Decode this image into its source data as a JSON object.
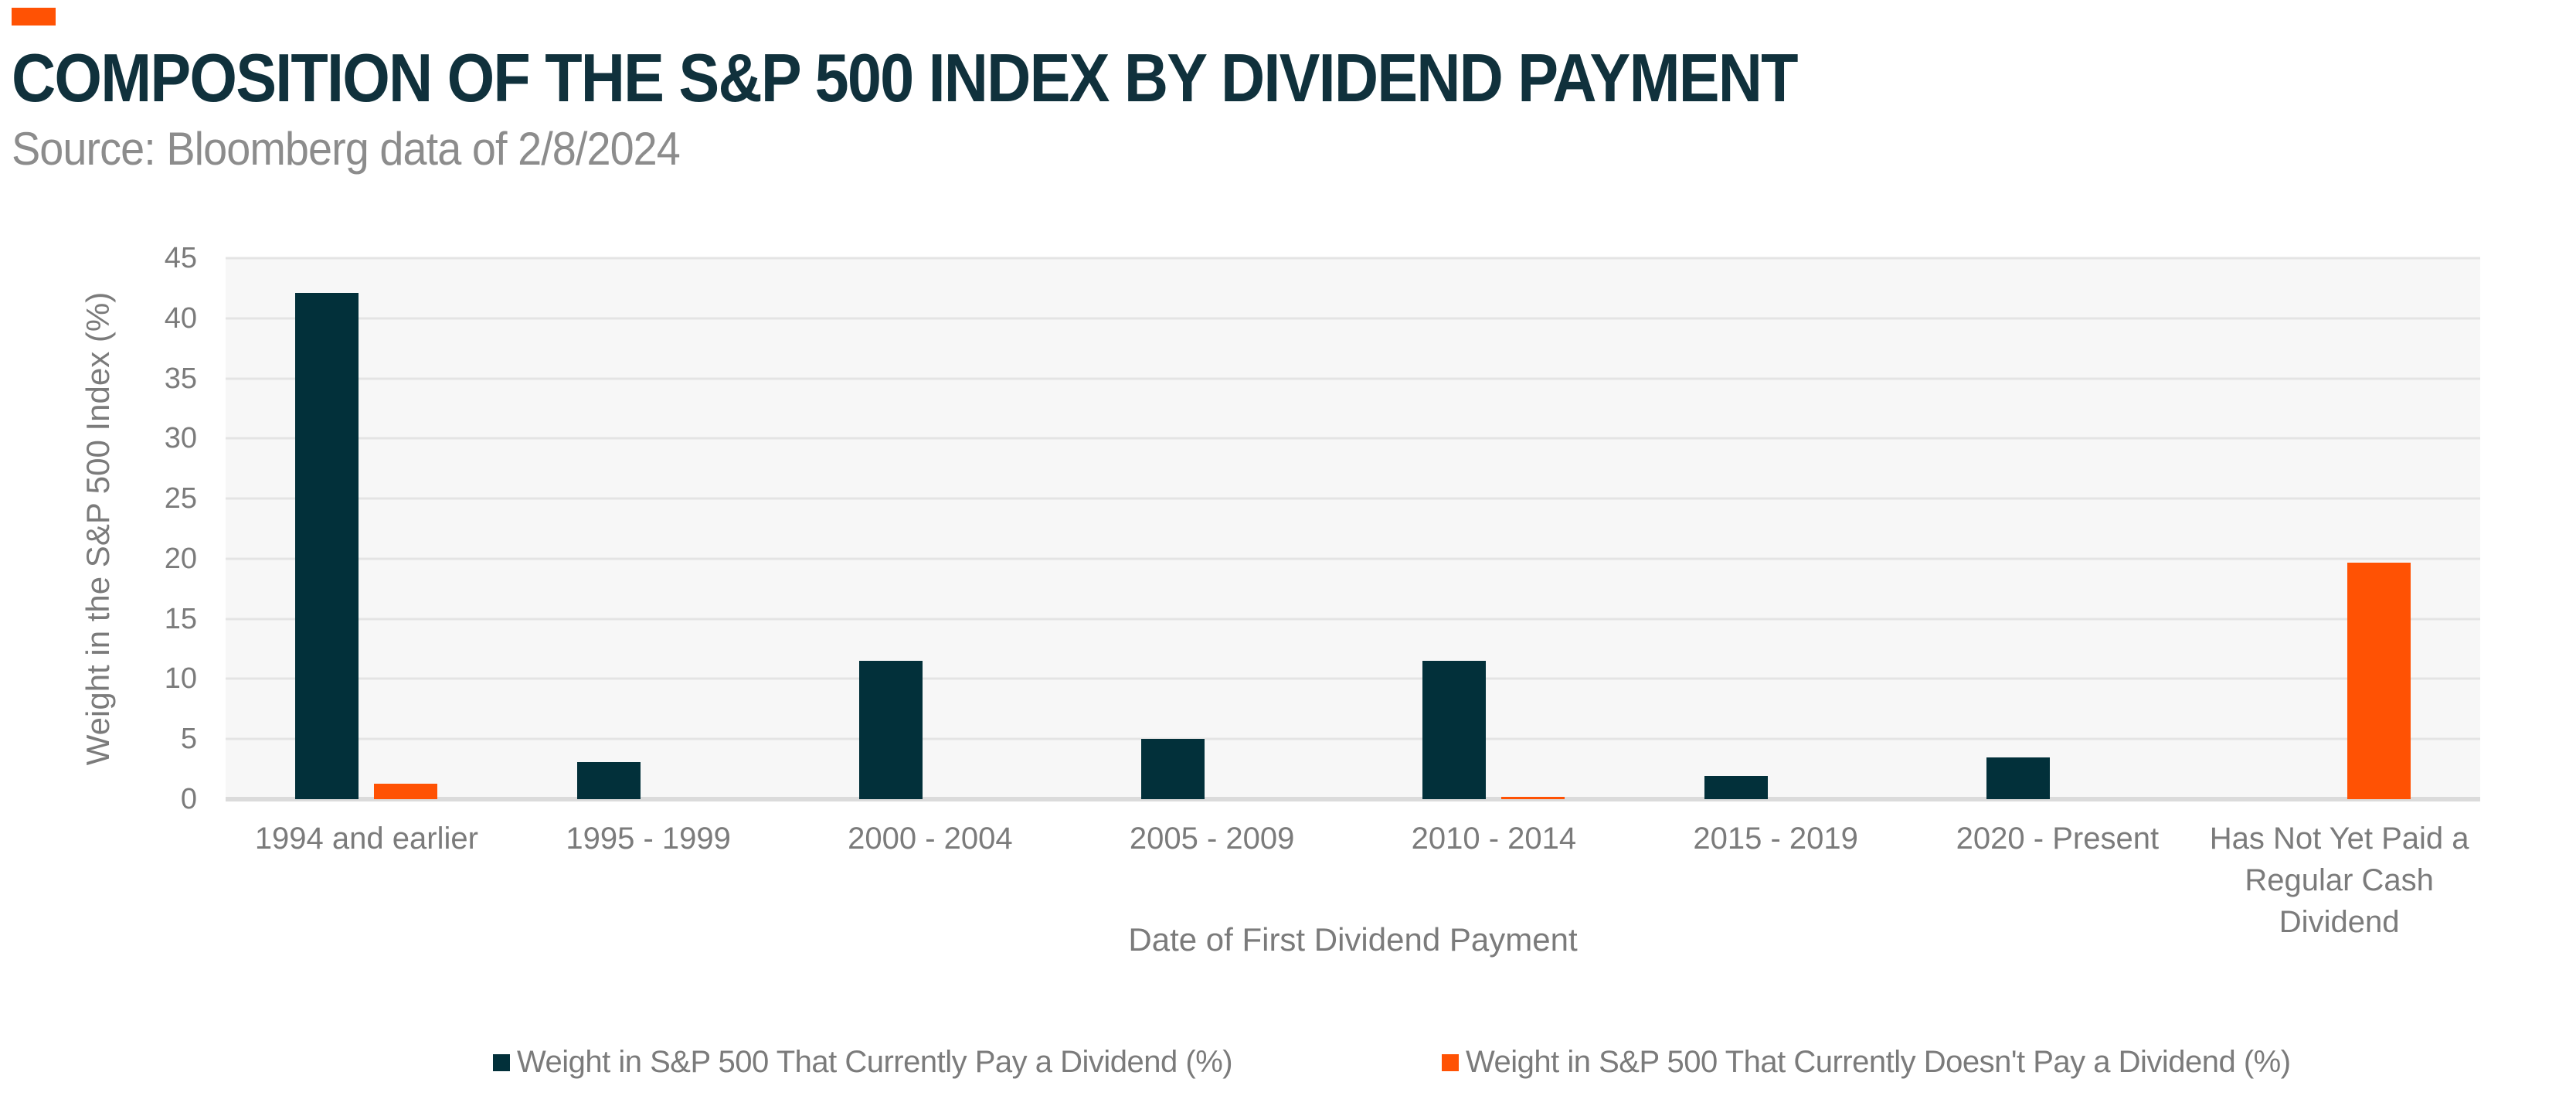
{
  "header": {
    "brand_mark_color": "#ff5204"
  },
  "chart_data": {
    "type": "bar",
    "title": "COMPOSITION OF THE S&P 500 INDEX BY DIVIDEND PAYMENT",
    "subtitle": "Source: Bloomberg data of 2/8/2024",
    "categories": [
      "1994 and earlier",
      "1995 - 1999",
      "2000 - 2004",
      "2005 - 2009",
      "2010 - 2014",
      "2015 - 2019",
      "2020 - Present",
      "Has Not Yet Paid a Regular Cash Dividend"
    ],
    "series": [
      {
        "name": "Weight in S&P 500 That Currently Pay a Dividend (%)",
        "color": "#02303a",
        "values": [
          42.1,
          3.1,
          11.5,
          5.0,
          11.5,
          1.9,
          3.5,
          0
        ]
      },
      {
        "name": "Weight in S&P 500 That Currently Doesn't Pay a Dividend (%)",
        "color": "#ff5204",
        "values": [
          1.3,
          0,
          0,
          0,
          0.2,
          0,
          0,
          19.7
        ]
      }
    ],
    "xlabel": "Date of First Dividend Payment",
    "ylabel": "Weight in the S&P 500 Index (%)",
    "ylim": [
      0,
      45
    ],
    "ytick_step": 5,
    "yticks": [
      0,
      5,
      10,
      15,
      20,
      25,
      30,
      35,
      40,
      45
    ],
    "grid": true,
    "legend_position": "bottom",
    "plot_background": "#f7f7f7",
    "gridline_color": "#e4e4e4",
    "axis_line_color": "#dbdbdb",
    "title_color": "#10313c",
    "subtitle_color": "#8c8c8c",
    "label_color": "#7b7b7b"
  }
}
